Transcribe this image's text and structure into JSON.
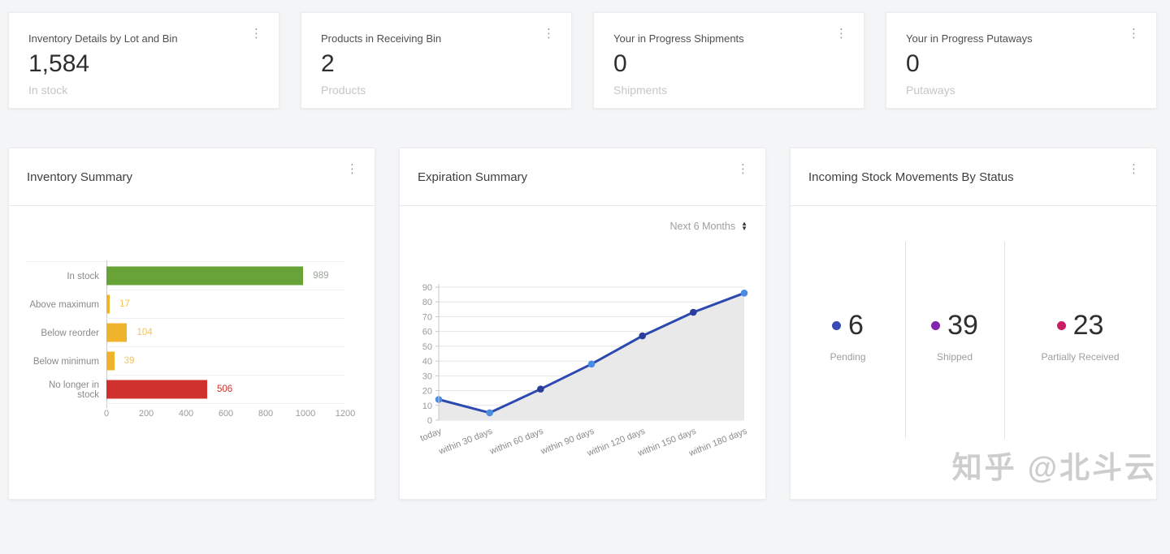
{
  "page": {
    "background": "#f4f5f6",
    "watermark": "知乎 @北斗云"
  },
  "stat_cards": [
    {
      "title": "Inventory Details by Lot and Bin",
      "value": "1,584",
      "subtitle": "In stock"
    },
    {
      "title": "Products in Receiving Bin",
      "value": "2",
      "subtitle": "Products"
    },
    {
      "title": "Your in Progress Shipments",
      "value": "0",
      "subtitle": "Shipments"
    },
    {
      "title": "Your in Progress Putaways",
      "value": "0",
      "subtitle": "Putaways"
    }
  ],
  "icons": {
    "kebab_menu": "⋮",
    "sort_up": "▲",
    "sort_down": "▼"
  },
  "panels": {
    "inventory_summary": {
      "title": "Inventory Summary"
    },
    "expiration_summary": {
      "title": "Expiration Summary",
      "filter_label": "Next 6 Months"
    },
    "incoming_status": {
      "title": "Incoming Stock Movements By Status",
      "stats": [
        {
          "value": "6",
          "label": "Pending",
          "color": "#3a4cb4"
        },
        {
          "value": "39",
          "label": "Shipped",
          "color": "#8123ae"
        },
        {
          "value": "23",
          "label": "Partially Received",
          "color": "#cb1d63"
        }
      ]
    }
  },
  "chart_data": [
    {
      "type": "bar",
      "orientation": "horizontal",
      "title": "Inventory Summary",
      "categories": [
        "In stock",
        "Above maximum",
        "Below reorder",
        "Below minimum",
        "No longer in stock"
      ],
      "values": [
        989,
        17,
        104,
        39,
        506
      ],
      "bar_colors": [
        "#67a337",
        "#f0b42c",
        "#f0b42c",
        "#f0b42c",
        "#d0312d"
      ],
      "value_label_colors": [
        "#9aa39a",
        "#f3c45c",
        "#f3c45c",
        "#f3c45c",
        "#d0312d"
      ],
      "xlim": [
        0,
        1200
      ],
      "x_ticks": [
        0,
        200,
        400,
        600,
        800,
        1000,
        1200
      ],
      "grid": true,
      "legend": false
    },
    {
      "type": "line",
      "title": "Expiration Summary",
      "x": [
        "today",
        "within 30 days",
        "within 60 days",
        "within 90 days",
        "within 120 days",
        "within 150 days",
        "within 180 days"
      ],
      "values": [
        14,
        5,
        21,
        38,
        57,
        73,
        86
      ],
      "ylim": [
        0,
        90
      ],
      "y_ticks": [
        0,
        10,
        20,
        30,
        40,
        50,
        60,
        70,
        80,
        90
      ],
      "line_color": "#2b49ae",
      "area_fill": "#e9e9e9",
      "marker_colors": [
        "#4a8be4",
        "#4a8be4",
        "#2b3d9b",
        "#4a8be4",
        "#2b3d9b",
        "#2b3d9b",
        "#4a8be4"
      ],
      "grid": true,
      "legend": false
    }
  ]
}
